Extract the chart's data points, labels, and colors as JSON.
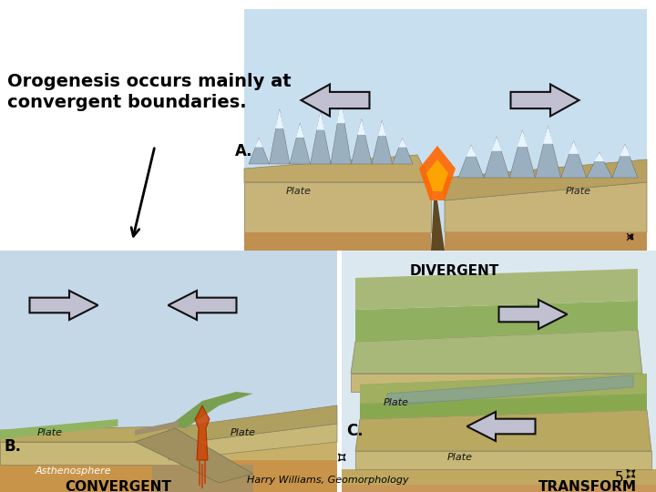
{
  "bg": "#ffffff",
  "title": "Orogenesis occurs mainly at\nconvergent boundaries.",
  "title_fontsize": 14,
  "label_A": "A.",
  "label_B": "B.",
  "label_C": "C.",
  "label_fontsize": 12,
  "div_label": "DIVERGENT",
  "con_label": "CONVERGENT",
  "tra_label": "TRANSFORM",
  "footer": "Harry Williams, Geomorphology",
  "page": "5",
  "plate_text": "Plate",
  "astheno_text": "Asthenosphere"
}
